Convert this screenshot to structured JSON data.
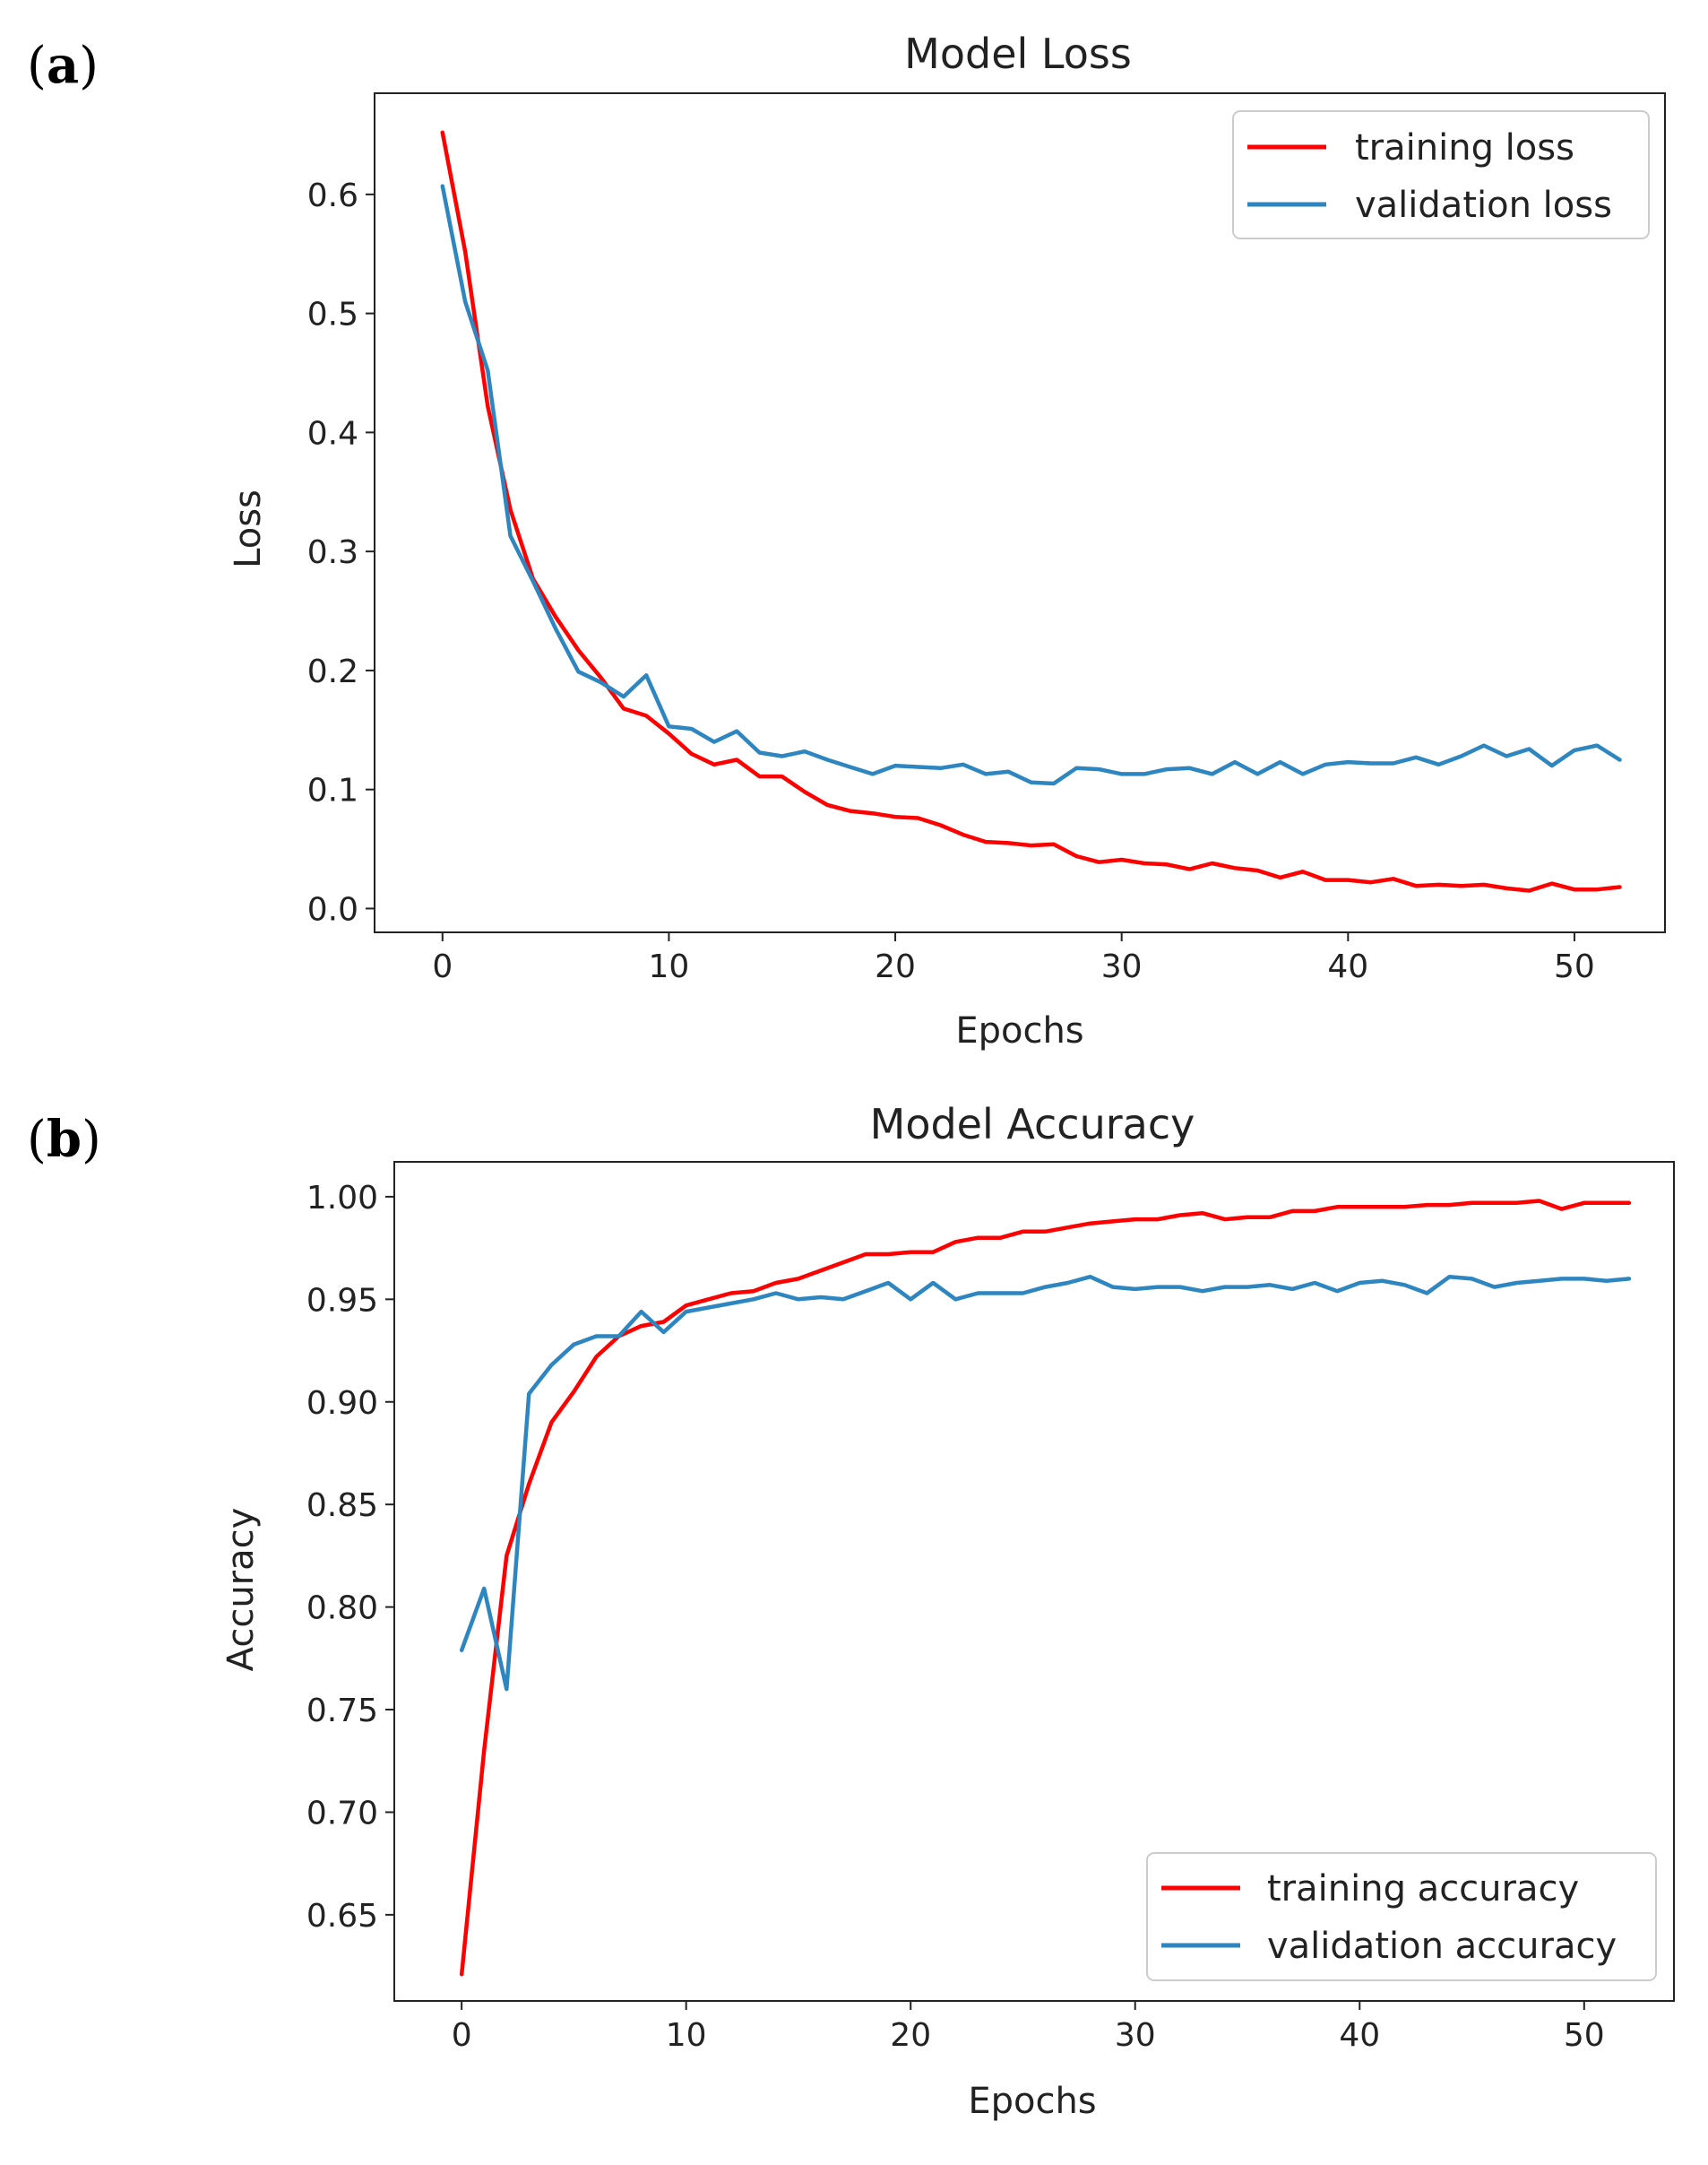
{
  "panels": [
    {
      "label": "a"
    },
    {
      "label": "b"
    }
  ],
  "chart_data": [
    {
      "type": "line",
      "title": "Model Loss",
      "xlabel": "Epochs",
      "ylabel": "Loss",
      "xlim": [
        -3,
        54
      ],
      "ylim": [
        -0.02,
        0.685
      ],
      "xticks": [
        0,
        10,
        20,
        30,
        40,
        50
      ],
      "xtick_labels": [
        "0",
        "10",
        "20",
        "30",
        "40",
        "50"
      ],
      "yticks": [
        0.0,
        0.1,
        0.2,
        0.3,
        0.4,
        0.5,
        0.6
      ],
      "ytick_labels": [
        "0.0",
        "0.1",
        "0.2",
        "0.3",
        "0.4",
        "0.5",
        "0.6"
      ],
      "legend_position": "top-right",
      "series": [
        {
          "name": "training loss",
          "color": "#ff0000",
          "values": [
            0.652,
            0.552,
            0.422,
            0.335,
            0.277,
            0.245,
            0.217,
            0.194,
            0.168,
            0.162,
            0.147,
            0.13,
            0.121,
            0.125,
            0.111,
            0.111,
            0.098,
            0.087,
            0.082,
            0.08,
            0.077,
            0.076,
            0.07,
            0.062,
            0.056,
            0.055,
            0.053,
            0.054,
            0.044,
            0.039,
            0.041,
            0.038,
            0.037,
            0.033,
            0.038,
            0.034,
            0.032,
            0.026,
            0.031,
            0.024,
            0.024,
            0.022,
            0.025,
            0.019,
            0.02,
            0.019,
            0.02,
            0.017,
            0.015,
            0.021,
            0.016,
            0.016,
            0.018
          ]
        },
        {
          "name": "validation loss",
          "color": "#2e86c1",
          "values": [
            0.607,
            0.51,
            0.452,
            0.313,
            0.275,
            0.235,
            0.199,
            0.19,
            0.178,
            0.196,
            0.153,
            0.151,
            0.14,
            0.149,
            0.131,
            0.128,
            0.132,
            0.125,
            0.119,
            0.113,
            0.12,
            0.119,
            0.118,
            0.121,
            0.113,
            0.115,
            0.106,
            0.105,
            0.118,
            0.117,
            0.113,
            0.113,
            0.117,
            0.118,
            0.113,
            0.123,
            0.113,
            0.123,
            0.113,
            0.121,
            0.123,
            0.122,
            0.122,
            0.127,
            0.121,
            0.128,
            0.137,
            0.128,
            0.134,
            0.12,
            0.133,
            0.137,
            0.125
          ]
        }
      ]
    },
    {
      "type": "line",
      "title": "Model Accuracy",
      "xlabel": "Epochs",
      "ylabel": "Accuracy",
      "xlim": [
        -3,
        54
      ],
      "ylim": [
        0.608,
        1.017
      ],
      "xticks": [
        0,
        10,
        20,
        30,
        40,
        50
      ],
      "xtick_labels": [
        "0",
        "10",
        "20",
        "30",
        "40",
        "50"
      ],
      "yticks": [
        0.65,
        0.7,
        0.75,
        0.8,
        0.85,
        0.9,
        0.95,
        1.0
      ],
      "ytick_labels": [
        "0.65",
        "0.70",
        "0.75",
        "0.80",
        "0.85",
        "0.90",
        "0.95",
        "1.00"
      ],
      "legend_position": "bottom-right",
      "series": [
        {
          "name": "training accuracy",
          "color": "#ff0000",
          "values": [
            0.621,
            0.73,
            0.825,
            0.86,
            0.89,
            0.905,
            0.922,
            0.932,
            0.937,
            0.939,
            0.947,
            0.95,
            0.953,
            0.954,
            0.958,
            0.96,
            0.964,
            0.968,
            0.972,
            0.972,
            0.973,
            0.973,
            0.978,
            0.98,
            0.98,
            0.983,
            0.983,
            0.985,
            0.987,
            0.988,
            0.989,
            0.989,
            0.991,
            0.992,
            0.989,
            0.99,
            0.99,
            0.993,
            0.993,
            0.995,
            0.995,
            0.995,
            0.995,
            0.996,
            0.996,
            0.997,
            0.997,
            0.997,
            0.998,
            0.994,
            0.997,
            0.997,
            0.997
          ]
        },
        {
          "name": "validation accuracy",
          "color": "#2e86c1",
          "values": [
            0.779,
            0.809,
            0.76,
            0.904,
            0.918,
            0.928,
            0.932,
            0.932,
            0.944,
            0.934,
            0.944,
            0.946,
            0.948,
            0.95,
            0.953,
            0.95,
            0.951,
            0.95,
            0.954,
            0.958,
            0.95,
            0.958,
            0.95,
            0.953,
            0.953,
            0.953,
            0.956,
            0.958,
            0.961,
            0.956,
            0.955,
            0.956,
            0.956,
            0.954,
            0.956,
            0.956,
            0.957,
            0.955,
            0.958,
            0.954,
            0.958,
            0.959,
            0.957,
            0.953,
            0.961,
            0.96,
            0.956,
            0.958,
            0.959,
            0.96,
            0.96,
            0.959,
            0.96
          ]
        }
      ]
    }
  ]
}
